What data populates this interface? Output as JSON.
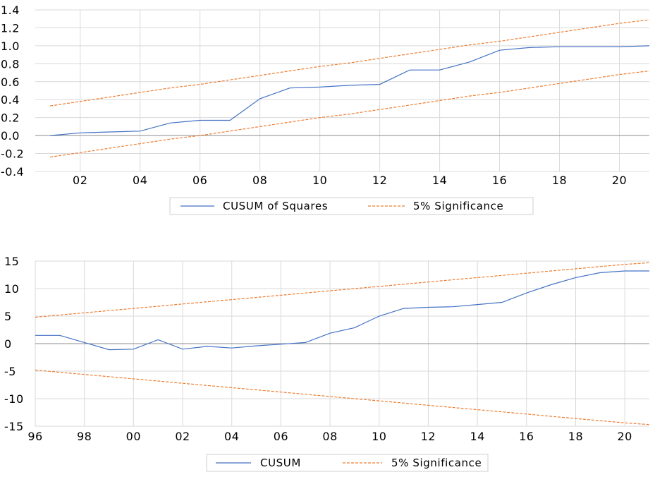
{
  "chart_data": [
    {
      "type": "line",
      "title": "",
      "xlabel": "",
      "ylabel": "",
      "x_tick_labels": [
        "02",
        "04",
        "06",
        "08",
        "10",
        "12",
        "14",
        "16",
        "18",
        "20"
      ],
      "x_tick_years": [
        2002,
        2004,
        2006,
        2008,
        2010,
        2012,
        2014,
        2016,
        2018,
        2020
      ],
      "xlim": [
        2000.5,
        2021
      ],
      "ylim": [
        -0.4,
        1.4
      ],
      "y_ticks": [
        1.4,
        1.2,
        1.0,
        0.8,
        0.6,
        0.4,
        0.2,
        0.0,
        -0.2,
        -0.4
      ],
      "y_tick_labels": [
        "1.4",
        "1.2",
        "1.0",
        "0.8",
        "0.6",
        "0.4",
        "0.2",
        "0.0",
        "-0.2",
        "-0.4"
      ],
      "grid": true,
      "legend_position": "bottom",
      "x": [
        2001,
        2002,
        2003,
        2004,
        2005,
        2006,
        2007,
        2008,
        2009,
        2010,
        2011,
        2012,
        2013,
        2014,
        2015,
        2016,
        2017,
        2018,
        2019,
        2020,
        2021
      ],
      "series": [
        {
          "name": "CUSUM of Squares",
          "color": "#4472c4",
          "style": "solid",
          "values": [
            0.0,
            0.03,
            0.04,
            0.05,
            0.14,
            0.17,
            0.17,
            0.41,
            0.53,
            0.54,
            0.56,
            0.57,
            0.73,
            0.73,
            0.82,
            0.95,
            0.98,
            0.99,
            0.99,
            0.99,
            1.0
          ]
        },
        {
          "name": "5% Significance",
          "color": "#ed7d31",
          "style": "dashed",
          "values": [
            0.33,
            0.38,
            0.43,
            0.48,
            0.53,
            0.57,
            0.62,
            0.67,
            0.72,
            0.77,
            0.81,
            0.86,
            0.91,
            0.96,
            1.01,
            1.05,
            1.1,
            1.15,
            1.2,
            1.25,
            1.29
          ]
        },
        {
          "name": "",
          "color": "#ed7d31",
          "style": "dashed",
          "values": [
            -0.24,
            -0.19,
            -0.14,
            -0.09,
            -0.04,
            0.0,
            0.05,
            0.1,
            0.15,
            0.2,
            0.24,
            0.29,
            0.34,
            0.39,
            0.44,
            0.48,
            0.53,
            0.58,
            0.63,
            0.68,
            0.72
          ]
        }
      ],
      "legend": [
        "CUSUM of Squares",
        "5% Significance"
      ]
    },
    {
      "type": "line",
      "title": "",
      "xlabel": "",
      "ylabel": "",
      "x_tick_labels": [
        "96",
        "98",
        "00",
        "02",
        "04",
        "06",
        "08",
        "10",
        "12",
        "14",
        "16",
        "18",
        "20"
      ],
      "x_tick_years": [
        1996,
        1998,
        2000,
        2002,
        2004,
        2006,
        2008,
        2010,
        2012,
        2014,
        2016,
        2018,
        2020
      ],
      "xlim": [
        1996,
        2021
      ],
      "ylim": [
        -15,
        15
      ],
      "y_ticks": [
        15,
        10,
        5,
        0,
        -5,
        -10,
        -15
      ],
      "y_tick_labels": [
        "15",
        "10",
        "5",
        "0",
        "-5",
        "-10",
        "-15"
      ],
      "grid": true,
      "legend_position": "bottom",
      "x": [
        1996,
        1997,
        1998,
        1999,
        2000,
        2001,
        2002,
        2003,
        2004,
        2005,
        2006,
        2007,
        2008,
        2009,
        2010,
        2011,
        2012,
        2013,
        2014,
        2015,
        2016,
        2017,
        2018,
        2019,
        2020,
        2021
      ],
      "series": [
        {
          "name": "CUSUM",
          "color": "#4472c4",
          "style": "solid",
          "values": [
            1.5,
            1.5,
            0.2,
            -1.1,
            -1.0,
            0.7,
            -1.0,
            -0.5,
            -0.8,
            -0.4,
            -0.1,
            0.2,
            1.9,
            2.9,
            5.0,
            6.4,
            6.6,
            6.7,
            7.1,
            7.5,
            9.2,
            10.7,
            12.0,
            12.9,
            13.2,
            13.2
          ]
        },
        {
          "name": "5% Significance",
          "color": "#ed7d31",
          "style": "dashed",
          "values": [
            4.8,
            5.2,
            5.6,
            6.0,
            6.4,
            6.8,
            7.2,
            7.6,
            8.0,
            8.4,
            8.8,
            9.2,
            9.6,
            10.0,
            10.4,
            10.8,
            11.2,
            11.6,
            12.0,
            12.4,
            12.8,
            13.2,
            13.6,
            14.0,
            14.4,
            14.7
          ]
        },
        {
          "name": "",
          "color": "#ed7d31",
          "style": "dashed",
          "values": [
            -4.8,
            -5.2,
            -5.6,
            -6.0,
            -6.4,
            -6.8,
            -7.2,
            -7.6,
            -8.0,
            -8.4,
            -8.8,
            -9.2,
            -9.6,
            -10.0,
            -10.4,
            -10.8,
            -11.2,
            -11.6,
            -12.0,
            -12.4,
            -12.8,
            -13.2,
            -13.6,
            -14.0,
            -14.4,
            -14.7
          ]
        }
      ],
      "legend": [
        "CUSUM",
        "5% Significance"
      ]
    }
  ]
}
